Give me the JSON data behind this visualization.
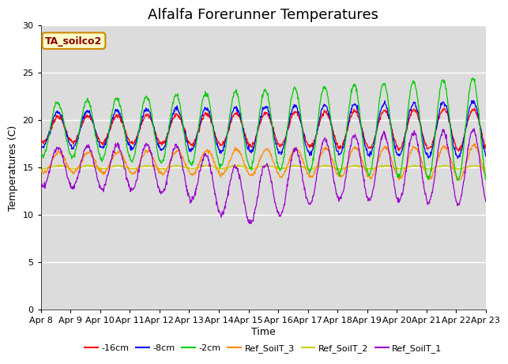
{
  "title": "Alfalfa Forerunner Temperatures",
  "xlabel": "Time",
  "ylabel": "Temperatures (C)",
  "ylim": [
    0,
    30
  ],
  "yticks": [
    0,
    5,
    10,
    15,
    20,
    25,
    30
  ],
  "background_color": "#dcdcdc",
  "legend_label": "TA_soilco2",
  "legend_box_color": "#ffffcc",
  "legend_box_edge": "#cc8800",
  "legend_text_color": "#880000",
  "series_colors": {
    "s16cm": "#ff0000",
    "s8cm": "#0000ff",
    "s2cm": "#00cc00",
    "ref3": "#ff8c00",
    "ref2": "#cccc00",
    "ref1": "#9900cc"
  },
  "legend_entries": [
    {
      "label": "-16cm",
      "color": "#ff0000"
    },
    {
      "label": "-8cm",
      "color": "#0000ff"
    },
    {
      "label": "-2cm",
      "color": "#00cc00"
    },
    {
      "label": "Ref_SoilT_3",
      "color": "#ff8c00"
    },
    {
      "label": "Ref_SoilT_2",
      "color": "#cccc00"
    },
    {
      "label": "Ref_SoilT_1",
      "color": "#9900cc"
    }
  ],
  "xtick_labels": [
    "Apr 8",
    "Apr 9",
    "Apr 10",
    "Apr 11",
    "Apr 12",
    "Apr 13",
    "Apr 14",
    "Apr 15",
    "Apr 16",
    "Apr 17",
    "Apr 18",
    "Apr 19",
    "Apr 20",
    "Apr 21",
    "Apr 22",
    "Apr 23"
  ],
  "title_fontsize": 13,
  "axis_label_fontsize": 9,
  "tick_fontsize": 8
}
